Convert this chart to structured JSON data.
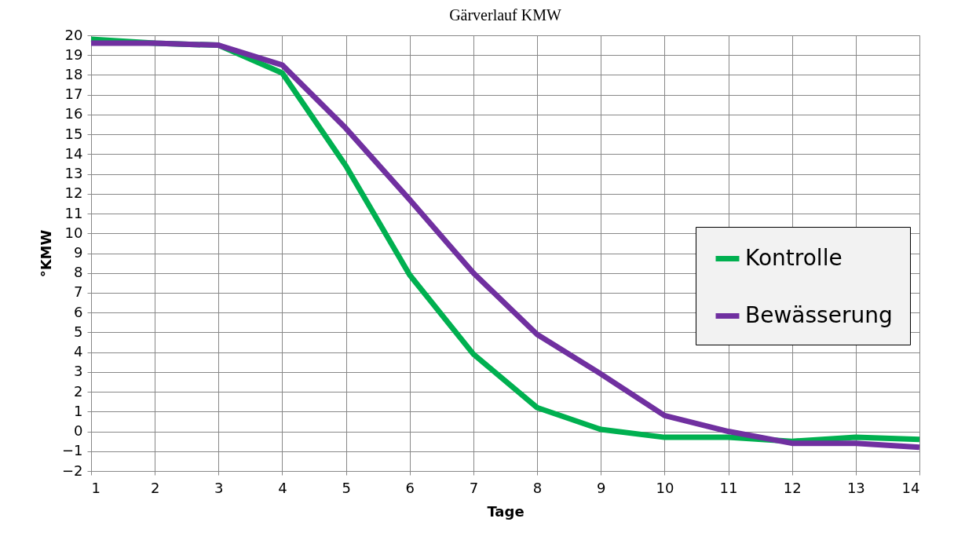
{
  "chart_data": {
    "type": "line",
    "title": "Gärverlauf KMW",
    "xlabel": "Tage",
    "ylabel": "°KMW",
    "x": [
      1,
      2,
      3,
      4,
      5,
      6,
      7,
      8,
      9,
      10,
      11,
      12,
      13,
      14
    ],
    "series": [
      {
        "name": "Kontrolle",
        "color": "#00b050",
        "values": [
          19.8,
          19.6,
          19.5,
          18.1,
          13.4,
          7.9,
          3.9,
          1.2,
          0.1,
          -0.3,
          -0.3,
          -0.5,
          -0.3,
          -0.4
        ]
      },
      {
        "name": "Bewässerung",
        "color": "#7030a0",
        "values": [
          19.6,
          19.6,
          19.5,
          18.5,
          15.3,
          11.7,
          8.0,
          4.9,
          2.9,
          0.8,
          0.0,
          -0.6,
          -0.6,
          -0.8
        ]
      }
    ],
    "xlim": [
      1,
      14
    ],
    "xticks": [
      1,
      2,
      3,
      4,
      5,
      6,
      7,
      8,
      9,
      10,
      11,
      12,
      13,
      14
    ],
    "ylim": [
      -2,
      20
    ],
    "yticks": [
      -2,
      -1,
      0,
      1,
      2,
      3,
      4,
      5,
      6,
      7,
      8,
      9,
      10,
      11,
      12,
      13,
      14,
      15,
      16,
      17,
      18,
      19,
      20
    ],
    "grid": true,
    "legend": "right",
    "marker": "none",
    "line_style": "solid"
  }
}
